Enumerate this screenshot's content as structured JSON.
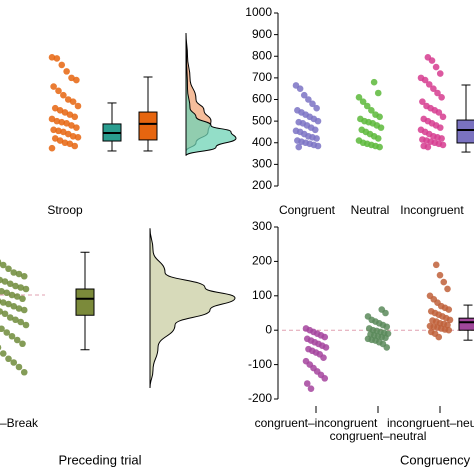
{
  "chart_data": [
    {
      "type": "raincloud",
      "categories": [
        "Stroop"
      ],
      "ylim": [
        200,
        1000
      ],
      "groups": [
        {
          "color": "#e6650f",
          "values": [
            795,
            790,
            760,
            730,
            700,
            690,
            660,
            640,
            620,
            600,
            590,
            570,
            560,
            550,
            540,
            530,
            520,
            510,
            500,
            495,
            490,
            480,
            470,
            460,
            455,
            450,
            440,
            430,
            425,
            420,
            410,
            400,
            395,
            385,
            375
          ]
        }
      ],
      "boxes": [
        {
          "color": "#2a9d8f",
          "whisker_low": 362,
          "q1": 408,
          "median": 445,
          "q3": 487,
          "whisker_high": 584
        },
        {
          "color": "#e6650f",
          "whisker_low": 362,
          "q1": 413,
          "median": 487,
          "q3": 542,
          "whisker_high": 704
        }
      ],
      "densities": [
        {
          "color": "#f2a77a",
          "y": [
            360,
            400,
            450,
            500,
            550,
            600,
            700,
            800,
            907
          ],
          "values": [
            0,
            10,
            22,
            25,
            18,
            10,
            4,
            1.5,
            0
          ]
        },
        {
          "color": "#6fd3b6",
          "y": [
            340,
            380,
            420,
            450,
            480,
            520,
            560,
            650,
            800,
            907
          ],
          "values": [
            0,
            30,
            50,
            45,
            25,
            10,
            4,
            1.5,
            0.5,
            0
          ]
        }
      ]
    },
    {
      "type": "raincloud",
      "categories": [
        "Congruent",
        "Neutral",
        "Incongruent"
      ],
      "ylim": [
        200,
        1000
      ],
      "yticks": [
        200,
        300,
        400,
        500,
        600,
        700,
        800,
        900,
        1000
      ],
      "groups": [
        {
          "color": "#7b73c4",
          "values": [
            665,
            650,
            620,
            600,
            580,
            560,
            550,
            540,
            530,
            520,
            510,
            500,
            495,
            490,
            480,
            470,
            460,
            455,
            450,
            440,
            430,
            425,
            420,
            410,
            405,
            400,
            395,
            390,
            385,
            380
          ]
        },
        {
          "color": "#5cb83a",
          "values": [
            680,
            630,
            610,
            590,
            570,
            550,
            530,
            520,
            510,
            500,
            495,
            490,
            480,
            470,
            460,
            450,
            440,
            430,
            420,
            410,
            400,
            395,
            390,
            385,
            380
          ]
        },
        {
          "color": "#d63c8f",
          "values": [
            795,
            780,
            750,
            720,
            700,
            690,
            670,
            650,
            630,
            610,
            590,
            570,
            560,
            550,
            540,
            520,
            510,
            500,
            490,
            480,
            470,
            460,
            450,
            440,
            430,
            425,
            420,
            415,
            410,
            405,
            400,
            395,
            390,
            385,
            380
          ]
        }
      ],
      "boxes": [
        {
          "color": "#7a72c0",
          "whisker_low": 357,
          "q1": 399,
          "median": 459,
          "q3": 505,
          "whisker_high": 667
        }
      ],
      "densities": []
    },
    {
      "type": "raincloud",
      "categories": [
        "–Break"
      ],
      "xlabel": "Preceding trial",
      "ylim": [
        -1,
        1
      ],
      "hline": 0,
      "groups": [
        {
          "color": "#6f8b3a",
          "values": [
            0.44,
            0.4,
            0.35,
            0.3,
            0.28,
            0.25,
            0.2,
            0.18,
            0.15,
            0.12,
            0.1,
            0.08,
            0.05,
            0.03,
            0,
            -0.02,
            -0.05,
            -0.08,
            -0.1,
            -0.12,
            -0.15,
            -0.18,
            -0.2,
            -0.22,
            -0.25,
            -0.3,
            -0.33,
            -0.36,
            -0.4,
            -0.45,
            -0.5,
            -0.55,
            -0.6,
            -0.65,
            -0.7,
            -0.78,
            -0.85,
            -0.9,
            -0.96,
            -1.03
          ]
        }
      ],
      "boxes": [
        {
          "color": "#7b8a3a",
          "whisker_low": -0.73,
          "q1": -0.27,
          "median": -0.05,
          "q3": 0.08,
          "whisker_high": 0.57
        }
      ],
      "densities": [
        {
          "color": "#c9cda3",
          "y": [
            0.89,
            0.6,
            0.3,
            0.1,
            -0.04,
            -0.2,
            -0.4,
            -0.7,
            -1.0,
            -1.24
          ],
          "values": [
            0,
            3,
            15,
            55,
            85,
            60,
            25,
            8,
            3,
            0
          ]
        }
      ]
    },
    {
      "type": "raincloud",
      "categories": [
        "congruent–incongruent",
        "congruent–neutral",
        "incongruent–neutral"
      ],
      "xlabel": "Congruency",
      "ylim": [
        -200,
        300
      ],
      "yticks": [
        -200,
        -100,
        0,
        100,
        200,
        300
      ],
      "hline": 0,
      "groups": [
        {
          "color": "#a5449e",
          "values": [
            5,
            0,
            -5,
            -10,
            -15,
            -20,
            -25,
            -30,
            -35,
            -40,
            -45,
            -50,
            -55,
            -60,
            -65,
            -70,
            -80,
            -90,
            -100,
            -110,
            -120,
            -130,
            -140,
            -155,
            -170
          ]
        },
        {
          "color": "#5a8a5a",
          "values": [
            60,
            50,
            40,
            30,
            25,
            20,
            15,
            10,
            5,
            0,
            -2,
            -5,
            -8,
            -10,
            -12,
            -15,
            -18,
            -20,
            -22,
            -25,
            -28,
            -30,
            -35,
            -40,
            -50
          ]
        },
        {
          "color": "#c0603a",
          "values": [
            190,
            160,
            140,
            120,
            100,
            90,
            80,
            70,
            65,
            60,
            55,
            50,
            45,
            40,
            35,
            30,
            28,
            25,
            20,
            18,
            15,
            12,
            10,
            8,
            5,
            2,
            0,
            -5,
            -10,
            -20
          ]
        }
      ],
      "boxes": [
        {
          "color": "#a0479a",
          "whisker_low": -29,
          "q1": 0,
          "median": 23,
          "q3": 35,
          "whisker_high": 73
        }
      ],
      "densities": []
    }
  ]
}
